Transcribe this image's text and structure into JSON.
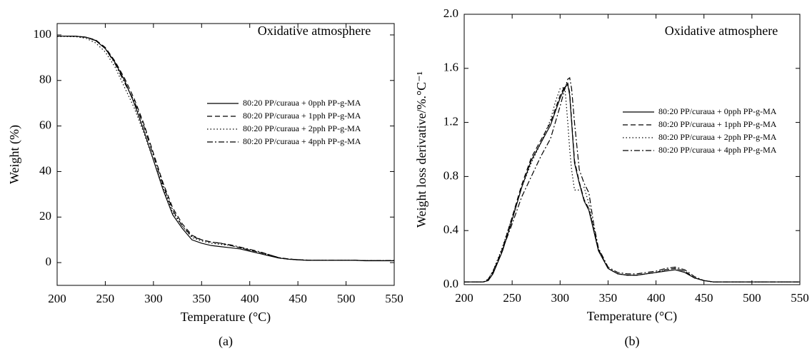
{
  "chart_data": [
    {
      "type": "line",
      "caption": "(a)",
      "annotation": "Oxidative atmosphere",
      "xlabel": "Temperature (°C)",
      "ylabel": "Weight (%)",
      "xlim": [
        200,
        550
      ],
      "xticks": [
        200,
        250,
        300,
        350,
        400,
        450,
        500,
        550
      ],
      "ylim": [
        -10,
        105
      ],
      "yticks": [
        0,
        20,
        40,
        60,
        80,
        100
      ],
      "legend": "right",
      "x": [
        200,
        210,
        220,
        230,
        240,
        250,
        260,
        270,
        280,
        290,
        300,
        310,
        320,
        330,
        340,
        350,
        360,
        370,
        380,
        390,
        400,
        410,
        420,
        430,
        440,
        450,
        460,
        470,
        480,
        490,
        500,
        510,
        520,
        530,
        540,
        550
      ],
      "series": [
        {
          "name": "80:20 PP/curaua + 0pph PP-g-MA",
          "color": "#000000",
          "dash": "solid",
          "values": [
            99.5,
            99.5,
            99.4,
            99,
            97.5,
            94,
            88,
            80,
            70,
            58,
            45,
            32,
            21,
            15,
            10,
            8.5,
            7.5,
            7,
            6.5,
            6,
            5,
            4,
            3,
            2,
            1.5,
            1.2,
            1,
            1,
            1,
            1,
            1,
            1,
            0.8,
            0.8,
            0.8,
            0.8
          ]
        },
        {
          "name": "80:20 PP/curaua + 1pph PP-g-MA",
          "color": "#000000",
          "dash": "dashed",
          "values": [
            99.5,
            99.5,
            99.4,
            99,
            97.8,
            94.5,
            88.5,
            81,
            72,
            61,
            48,
            35,
            24,
            17,
            12,
            10,
            9,
            8.5,
            7.5,
            6.5,
            5.5,
            4.5,
            3.5,
            2.2,
            1.6,
            1.3,
            1.1,
            1,
            1,
            1,
            1,
            1,
            0.9,
            0.9,
            0.9,
            0.9
          ]
        },
        {
          "name": "80:20 PP/curaua + 2pph PP-g-MA",
          "color": "#000000",
          "dash": "dotted",
          "values": [
            99.3,
            99.3,
            99.2,
            98.5,
            96.5,
            92.5,
            86,
            77,
            68,
            57,
            45,
            33,
            22,
            16,
            11,
            9.5,
            8.5,
            8,
            7.5,
            6.5,
            5.5,
            4.5,
            3.2,
            2,
            1.5,
            1.2,
            1,
            1,
            1,
            1,
            1,
            1,
            0.9,
            0.9,
            0.9,
            0.9
          ]
        },
        {
          "name": "80:20 PP/curaua + 4pph PP-g-MA",
          "color": "#000000",
          "dash": "dashdot",
          "values": [
            99.5,
            99.5,
            99.4,
            99,
            97.6,
            94,
            87.5,
            79,
            71,
            60,
            47,
            34,
            23,
            16,
            11.5,
            10,
            9,
            8.5,
            7.8,
            6.8,
            5.8,
            4.8,
            3.5,
            2.2,
            1.6,
            1.3,
            1.1,
            1,
            1,
            1,
            1,
            1,
            0.9,
            0.9,
            0.9,
            0.9
          ]
        }
      ]
    },
    {
      "type": "line",
      "caption": "(b)",
      "annotation": "Oxidative atmosphere",
      "xlabel": "Temperature (°C)",
      "ylabel": "Weight loss derivative/%.°C⁻¹",
      "xlim": [
        200,
        550
      ],
      "xticks": [
        200,
        250,
        300,
        350,
        400,
        450,
        500,
        550
      ],
      "ylim": [
        0,
        2
      ],
      "yticks": [
        {
          "value": 0,
          "label": "0.0"
        },
        0.4,
        0.8,
        1.2,
        1.6,
        {
          "value": 2,
          "label": "2.0"
        }
      ],
      "legend": "right",
      "x": [
        200,
        210,
        220,
        225,
        230,
        240,
        250,
        260,
        270,
        280,
        290,
        295,
        300,
        305,
        308,
        310,
        312,
        315,
        320,
        325,
        330,
        335,
        340,
        350,
        360,
        370,
        380,
        390,
        400,
        410,
        420,
        430,
        440,
        450,
        460,
        480,
        500,
        520,
        550
      ],
      "series": [
        {
          "name": "80:20 PP/curaua + 0pph PP-g-MA",
          "color": "#000000",
          "dash": "solid",
          "values": [
            0.02,
            0.02,
            0.02,
            0.03,
            0.08,
            0.25,
            0.48,
            0.72,
            0.92,
            1.05,
            1.18,
            1.28,
            1.38,
            1.46,
            1.48,
            1.4,
            1.2,
            0.9,
            0.75,
            0.62,
            0.55,
            0.4,
            0.25,
            0.12,
            0.08,
            0.07,
            0.07,
            0.08,
            0.09,
            0.1,
            0.11,
            0.09,
            0.05,
            0.03,
            0.02,
            0.02,
            0.02,
            0.02,
            0.02
          ]
        },
        {
          "name": "80:20 PP/curaua + 1pph PP-g-MA",
          "color": "#000000",
          "dash": "dashed",
          "values": [
            0.02,
            0.02,
            0.02,
            0.03,
            0.09,
            0.27,
            0.5,
            0.74,
            0.94,
            1.07,
            1.2,
            1.3,
            1.4,
            1.47,
            1.49,
            1.42,
            1.22,
            0.92,
            0.76,
            0.63,
            0.56,
            0.41,
            0.26,
            0.12,
            0.08,
            0.07,
            0.07,
            0.08,
            0.09,
            0.11,
            0.12,
            0.1,
            0.05,
            0.03,
            0.02,
            0.02,
            0.02,
            0.02,
            0.02
          ]
        },
        {
          "name": "80:20 PP/curaua + 2pph PP-g-MA",
          "color": "#000000",
          "dash": "dotted",
          "values": [
            0.02,
            0.02,
            0.02,
            0.04,
            0.1,
            0.28,
            0.5,
            0.72,
            0.9,
            1.05,
            1.22,
            1.35,
            1.45,
            1.46,
            1.2,
            1.0,
            0.85,
            0.7,
            0.7,
            0.72,
            0.6,
            0.42,
            0.26,
            0.12,
            0.08,
            0.07,
            0.07,
            0.08,
            0.09,
            0.11,
            0.12,
            0.1,
            0.05,
            0.03,
            0.02,
            0.02,
            0.02,
            0.02,
            0.02
          ]
        },
        {
          "name": "80:20 PP/curaua + 4pph PP-g-MA",
          "color": "#000000",
          "dash": "dashdot",
          "values": [
            0.02,
            0.02,
            0.02,
            0.04,
            0.1,
            0.26,
            0.45,
            0.65,
            0.8,
            0.95,
            1.08,
            1.2,
            1.32,
            1.45,
            1.52,
            1.53,
            1.45,
            1.2,
            0.85,
            0.75,
            0.68,
            0.45,
            0.27,
            0.13,
            0.09,
            0.08,
            0.08,
            0.09,
            0.1,
            0.12,
            0.13,
            0.11,
            0.06,
            0.03,
            0.02,
            0.02,
            0.02,
            0.02,
            0.02
          ]
        }
      ]
    }
  ]
}
